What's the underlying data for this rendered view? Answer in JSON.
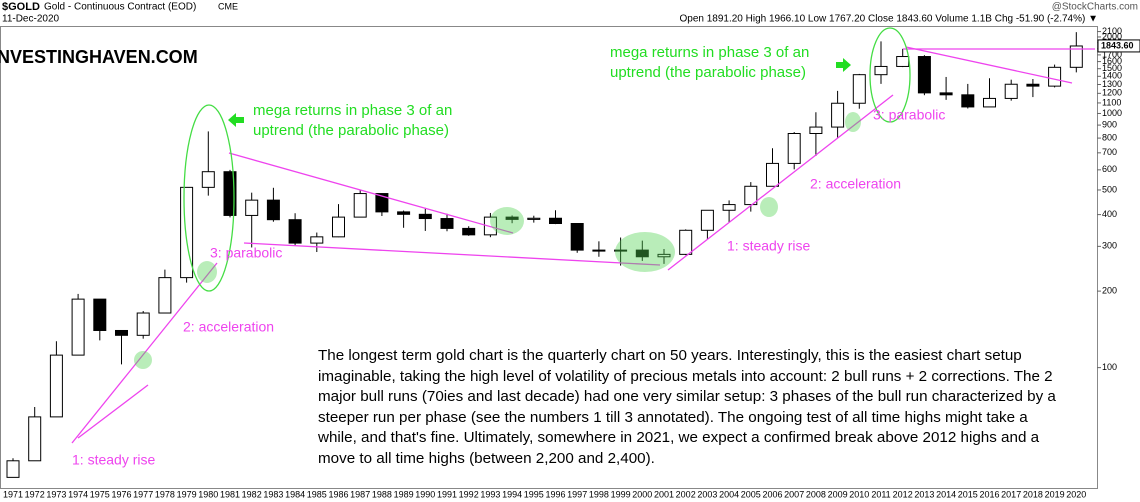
{
  "chart_data": {
    "type": "candlestick",
    "title": "$GOLD",
    "subtitle": "Gold - Continuous Contract (EOD)",
    "exchange": "CME",
    "date": "11-Dec-2020",
    "source": "@StockCharts.com",
    "quote": "Open 1891.20 High 1966.10 Low 1767.20 Close 1843.60 Volume 1.1B Chg -51.90 (-2.74%) ▼",
    "watermark": "INVESTINGHAVEN.COM",
    "last_price": {
      "value": 1843.6,
      "label": "1843.60"
    },
    "log_scale": true,
    "up_color": "#ffffff",
    "down_color": "#000000",
    "categories": [
      "1971",
      "1972",
      "1973",
      "1974",
      "1975",
      "1976",
      "1977",
      "1978",
      "1979",
      "1980",
      "1981",
      "1982",
      "1983",
      "1984",
      "1985",
      "1986",
      "1987",
      "1988",
      "1989",
      "1990",
      "1991",
      "1992",
      "1993",
      "1994",
      "1995",
      "1996",
      "1997",
      "1998",
      "1999",
      "2000",
      "2001",
      "2002",
      "2003",
      "2004",
      "2005",
      "2006",
      "2007",
      "2008",
      "2009",
      "2010",
      "2011",
      "2012",
      "2013",
      "2014",
      "2015",
      "2016",
      "2017",
      "2018",
      "2019",
      "2020"
    ],
    "open": [
      37,
      43,
      64,
      112,
      186,
      140,
      134,
      164,
      226,
      512,
      590,
      397,
      456,
      382,
      309,
      327,
      391,
      484,
      410,
      401,
      386,
      353,
      333,
      391,
      383,
      387,
      369,
      290,
      288,
      290,
      273,
      279,
      347,
      416,
      438,
      517,
      636,
      834,
      884,
      1097,
      1421,
      1531,
      1675,
      1205,
      1184,
      1061,
      1146,
      1303,
      1281,
      1519
    ],
    "high": [
      44,
      70,
      127,
      195,
      186,
      140,
      167,
      243,
      512,
      850,
      600,
      488,
      510,
      405,
      340,
      440,
      500,
      485,
      415,
      425,
      403,
      360,
      406,
      397,
      396,
      416,
      368,
      314,
      325,
      316,
      293,
      350,
      417,
      455,
      537,
      730,
      845,
      1011,
      1227,
      1431,
      1921,
      1796,
      1696,
      1392,
      1307,
      1375,
      1358,
      1366,
      1557,
      2089
    ],
    "low": [
      37,
      43,
      64,
      112,
      128,
      103,
      130,
      164,
      216,
      475,
      390,
      297,
      375,
      303,
      285,
      326,
      390,
      395,
      355,
      345,
      344,
      330,
      326,
      370,
      372,
      367,
      283,
      273,
      252,
      263,
      256,
      277,
      320,
      373,
      411,
      525,
      603,
      681,
      802,
      1044,
      1308,
      1522,
      1180,
      1131,
      1046,
      1061,
      1123,
      1160,
      1266,
      1451
    ],
    "close": [
      43,
      64,
      112,
      186,
      140,
      134,
      164,
      226,
      512,
      590,
      397,
      456,
      382,
      309,
      327,
      391,
      484,
      410,
      401,
      386,
      353,
      333,
      391,
      383,
      387,
      369,
      290,
      288,
      290,
      273,
      279,
      347,
      416,
      438,
      517,
      636,
      834,
      884,
      1097,
      1421,
      1531,
      1675,
      1205,
      1184,
      1061,
      1146,
      1303,
      1281,
      1519,
      1843
    ],
    "ylim": [
      33,
      2130
    ],
    "yticks": [
      100,
      200,
      300,
      400,
      500,
      600,
      700,
      800,
      900,
      1000,
      1100,
      1200,
      1300,
      1400,
      1500,
      1600,
      1700,
      1800,
      1900,
      2000,
      2100
    ],
    "annotations_green": [
      [
        "mega returns in phase 3 of an",
        "uptrend (the parabolic phase)"
      ],
      [
        "mega returns in phase 3 of an",
        "uptrend (the parabolic phase)"
      ]
    ],
    "annotations_pink": [
      "3: parabolic",
      "2: acceleration",
      "1: steady rise",
      "1: steady rise",
      "2: acceleration",
      "3: parabolic"
    ],
    "comment": "The longest term gold chart is the quarterly chart on 50 years. Interestingly, this is the easiest chart setup imaginable, taking the high level of volatility of precious metals into account: 2 bull runs + 2 corrections. The 2 major bull runs (70ies and last decade) had one very similar setup: 3 phases of the bull run characterized by a steeper run per phase (see the numbers 1 till 3 annotated). The ongoing test of all time highs might take a while, and that's fine. Ultimately, somewhere in 2021, we expect a confirmed break above 2012 highs and a move to all time highs (between 2,200 and 2,400)."
  }
}
